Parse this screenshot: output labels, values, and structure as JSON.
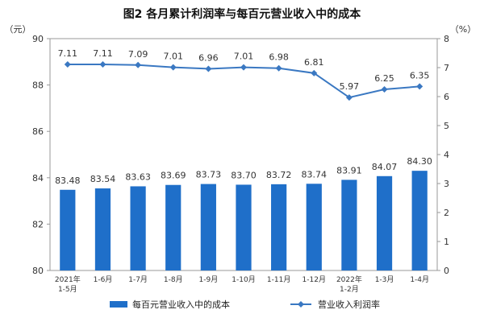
{
  "chart_data": {
    "title": "图2 各月累计利润率与每百元营业收入中的成本",
    "left_axis": {
      "unit": "（元）",
      "range": [
        80,
        90
      ],
      "ticks": [
        "80",
        "82",
        "84",
        "86",
        "88",
        "90"
      ]
    },
    "right_axis": {
      "unit": "（%）",
      "range": [
        0,
        8
      ],
      "ticks": [
        "0",
        "1",
        "2",
        "3",
        "4",
        "5",
        "6",
        "7",
        "8"
      ]
    },
    "categories": [
      [
        "2021年",
        "1-5月"
      ],
      [
        "1-6月"
      ],
      [
        "1-7月"
      ],
      [
        "1-8月"
      ],
      [
        "1-9月"
      ],
      [
        "1-10月"
      ],
      [
        "1-11月"
      ],
      [
        "1-12月"
      ],
      [
        "2022年",
        "1-2月"
      ],
      [
        "1-3月"
      ],
      [
        "1-4月"
      ]
    ],
    "series": [
      {
        "name": "每百元营业收入中的成本",
        "type": "bar",
        "axis": "left",
        "color": "#1f6fc9",
        "values": [
          83.48,
          83.54,
          83.63,
          83.69,
          83.73,
          83.7,
          83.72,
          83.74,
          83.91,
          84.07,
          84.3
        ],
        "labels": [
          "83.48",
          "83.54",
          "83.63",
          "83.69",
          "83.73",
          "83.70",
          "83.72",
          "83.74",
          "83.91",
          "84.07",
          "84.30"
        ]
      },
      {
        "name": "营业收入利润率",
        "type": "line",
        "axis": "right",
        "color": "#3a78c2",
        "values": [
          7.11,
          7.11,
          7.09,
          7.01,
          6.96,
          7.01,
          6.98,
          6.81,
          5.97,
          6.25,
          6.35
        ],
        "labels": [
          "7.11",
          "7.11",
          "7.09",
          "7.01",
          "6.96",
          "7.01",
          "6.98",
          "6.81",
          "5.97",
          "6.25",
          "6.35"
        ]
      }
    ],
    "grid": false,
    "legend": "bottom"
  }
}
